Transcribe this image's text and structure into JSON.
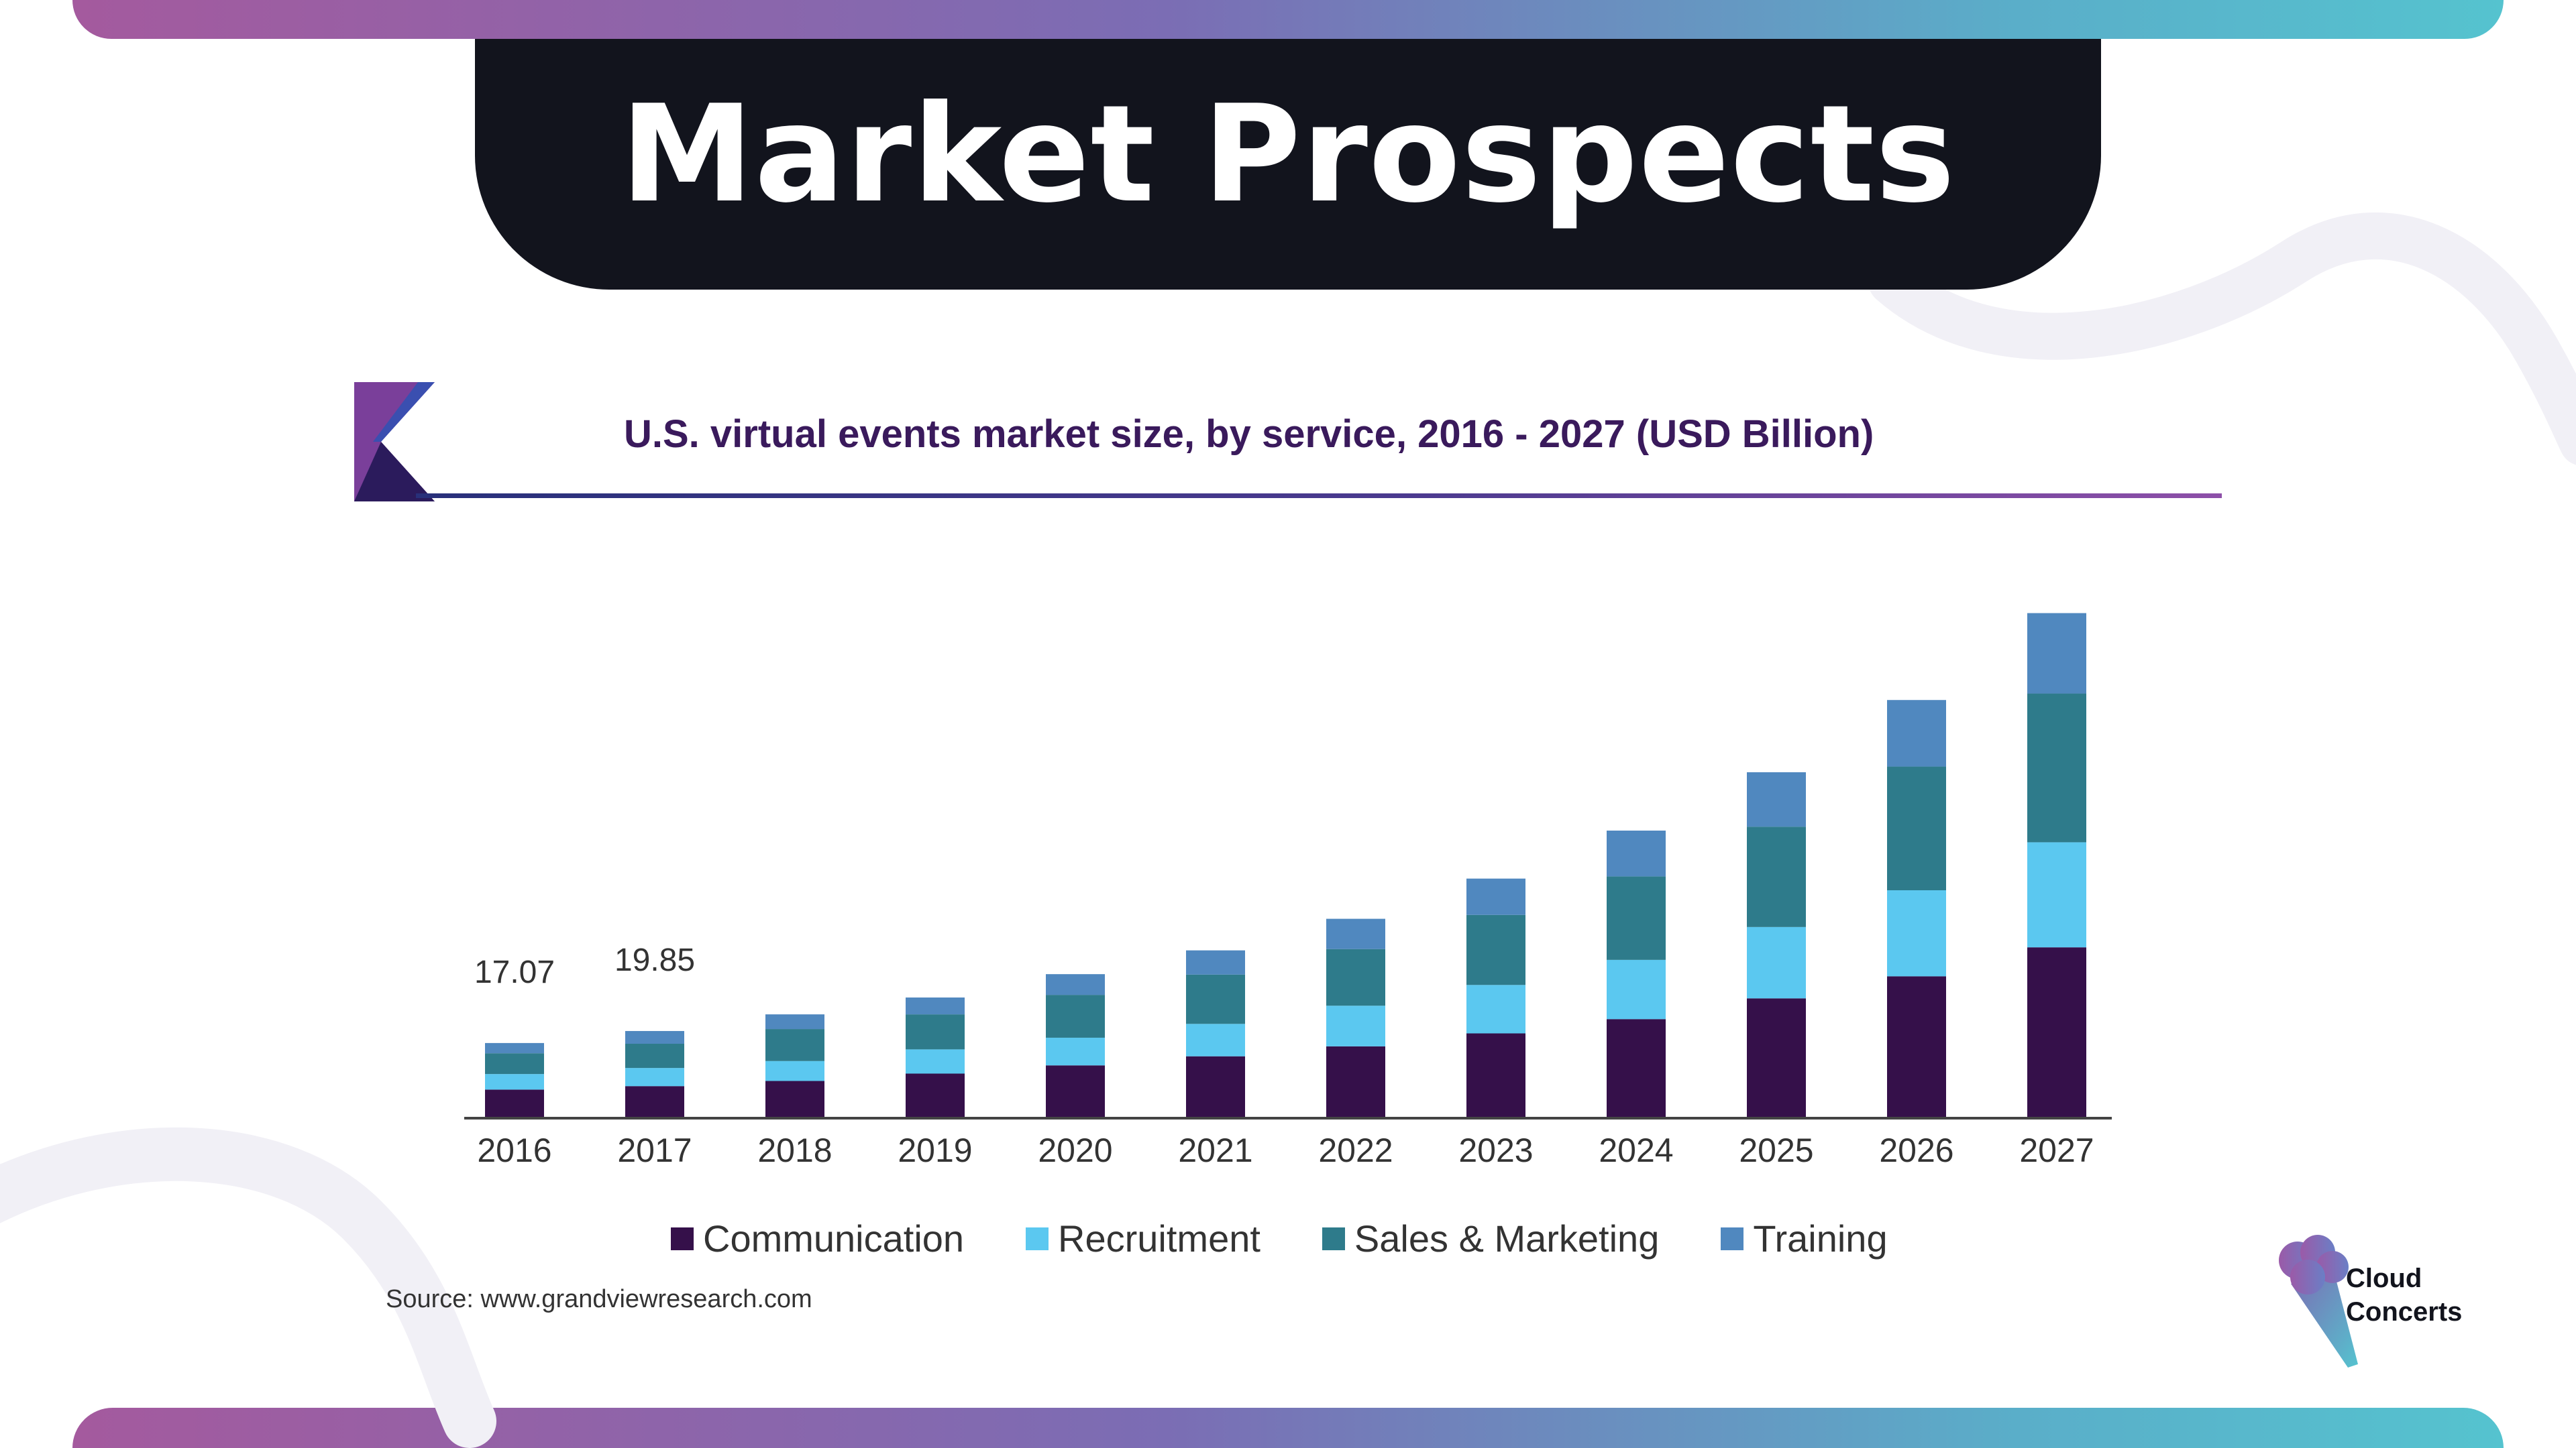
{
  "page": {
    "title": "Market Prospects"
  },
  "colors": {
    "communication": "#35104a",
    "recruitment": "#5bc8f0",
    "sales_marketing": "#2e7b8b",
    "training": "#5088bf"
  },
  "chart_data": {
    "type": "bar",
    "stacked": true,
    "title": "U.S. virtual events market size, by service, 2016 - 2027 (USD Billion)",
    "xlabel": "",
    "ylabel": "",
    "categories": [
      "2016",
      "2017",
      "2018",
      "2019",
      "2020",
      "2021",
      "2022",
      "2023",
      "2024",
      "2025",
      "2026",
      "2027"
    ],
    "series": [
      {
        "name": "Communication",
        "values": [
          6.3,
          7.1,
          8.3,
          10.0,
          11.9,
          14.0,
          16.3,
          19.3,
          22.6,
          27.4,
          32.5,
          39.2
        ]
      },
      {
        "name": "Recruitment",
        "values": [
          3.6,
          4.2,
          4.6,
          5.6,
          6.4,
          7.5,
          9.4,
          11.2,
          13.7,
          16.5,
          19.9,
          24.3
        ]
      },
      {
        "name": "Sales & Marketing",
        "values": [
          4.8,
          5.6,
          7.4,
          8.1,
          9.9,
          11.4,
          13.1,
          16.2,
          19.3,
          23.2,
          28.6,
          34.4
        ]
      },
      {
        "name": "Training",
        "values": [
          2.37,
          2.95,
          3.4,
          3.9,
          4.8,
          5.6,
          7.0,
          8.4,
          10.6,
          12.6,
          15.4,
          18.6
        ]
      }
    ],
    "data_labels": {
      "2016": "17.07",
      "2017": "19.85"
    },
    "ylim": [
      0,
      120
    ],
    "grid": false,
    "legend": "bottom"
  },
  "source": "Source: www.grandviewresearch.com",
  "brand": {
    "line1": "Cloud",
    "line2": "Concerts",
    "icon": "microphone-icon"
  }
}
